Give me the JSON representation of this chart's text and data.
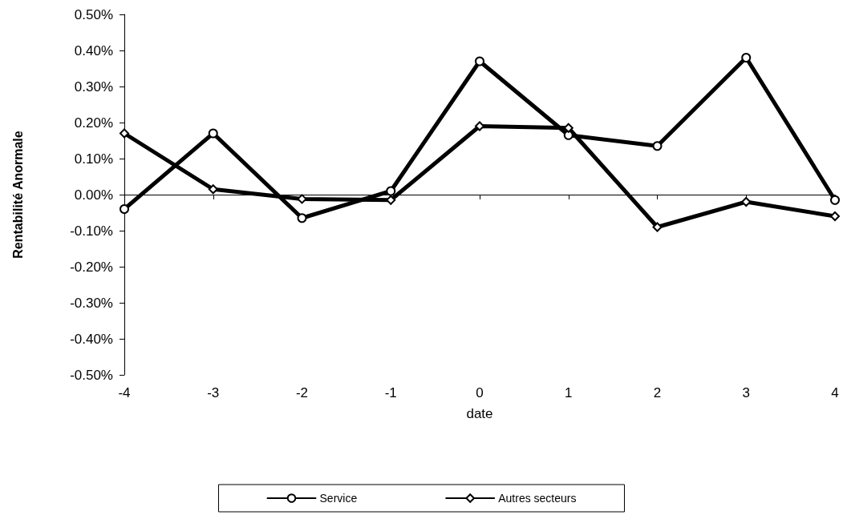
{
  "chart_data": {
    "type": "line",
    "xlabel": "date",
    "ylabel": "Rentabilité Anormale",
    "x": [
      -4,
      -3,
      -2,
      -1,
      0,
      1,
      2,
      3,
      4
    ],
    "series": [
      {
        "name": "Service",
        "color": "#000000",
        "marker": "circle",
        "values": [
          -0.04,
          0.17,
          -0.065,
          0.01,
          0.37,
          0.165,
          0.135,
          0.38,
          -0.015
        ]
      },
      {
        "name": "Autres secteurs",
        "color": "#000000",
        "marker": "diamond",
        "values": [
          0.17,
          0.015,
          -0.012,
          -0.015,
          0.19,
          0.185,
          -0.09,
          -0.02,
          -0.06
        ]
      }
    ],
    "xlim": [
      -4,
      4
    ],
    "xticks": [
      -4,
      -3,
      -2,
      -1,
      0,
      1,
      2,
      3,
      4
    ],
    "ylim": [
      -0.5,
      0.5
    ],
    "yticks": [
      {
        "value": -0.5,
        "label": "-0.50%"
      },
      {
        "value": -0.4,
        "label": "-0.40%"
      },
      {
        "value": -0.3,
        "label": "-0.30%"
      },
      {
        "value": -0.2,
        "label": "-0.20%"
      },
      {
        "value": -0.1,
        "label": "-0.10%"
      },
      {
        "value": 0,
        "label": "0.00%"
      },
      {
        "value": 0.1,
        "label": "0.10%"
      },
      {
        "value": 0.2,
        "label": "0.20%"
      },
      {
        "value": 0.3,
        "label": "0.30%"
      },
      {
        "value": 0.4,
        "label": "0.40%"
      },
      {
        "value": 0.5,
        "label": "0.50%"
      }
    ],
    "legend": "bottom",
    "line_style": "solid"
  }
}
